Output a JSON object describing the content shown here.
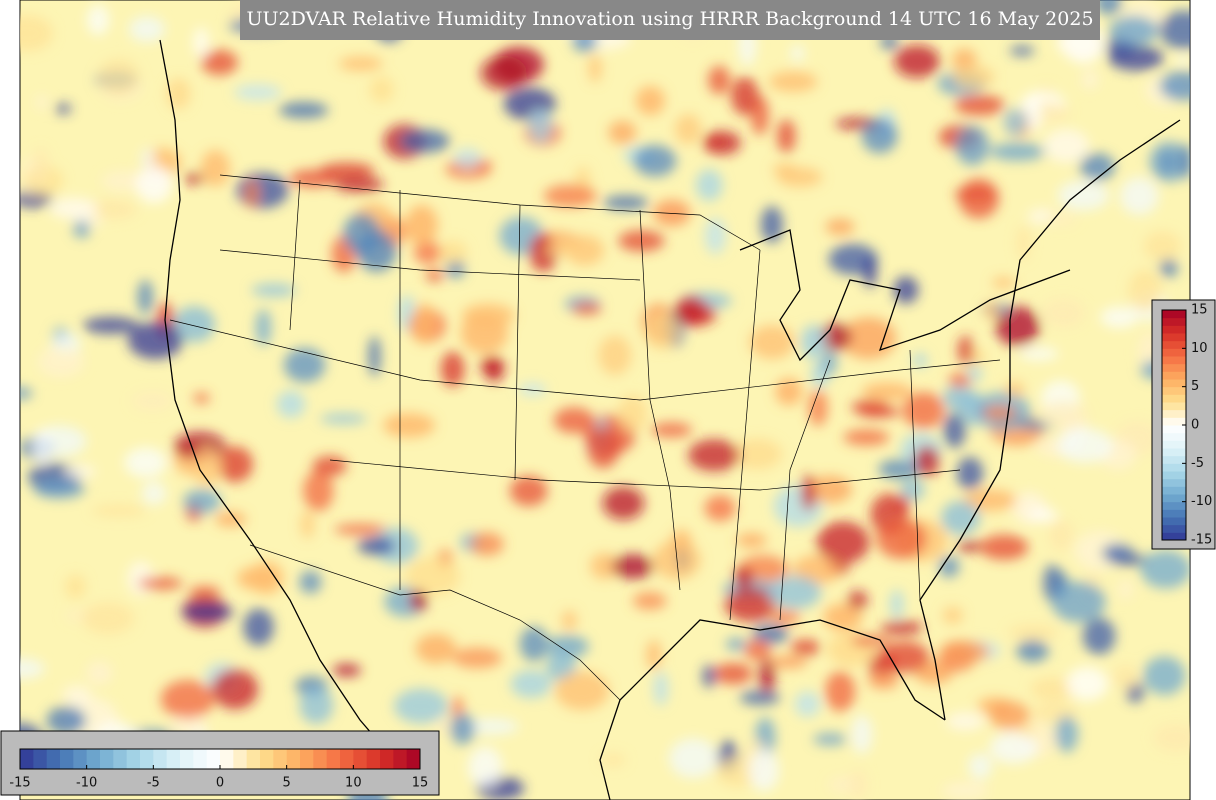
{
  "title": "UU2DVAR Relative Humidity Innovation using HRRR Background 14 UTC 16 May 2025",
  "colorbars": [
    {
      "orientation": "horizontal",
      "lim": [
        -15,
        15
      ],
      "ticks": [
        -15,
        -10,
        -5,
        0,
        5,
        10,
        15
      ]
    },
    {
      "orientation": "vertical",
      "lim": [
        -15,
        15
      ],
      "ticks": [
        -15,
        -10,
        -5,
        0,
        5,
        10,
        15
      ]
    }
  ],
  "colormap": [
    "#313695",
    "#4575b4",
    "#74add1",
    "#abd9e9",
    "#e0f3f8",
    "#ffffff",
    "#fee090",
    "#fdae61",
    "#f46d43",
    "#d73027",
    "#a50026"
  ]
}
